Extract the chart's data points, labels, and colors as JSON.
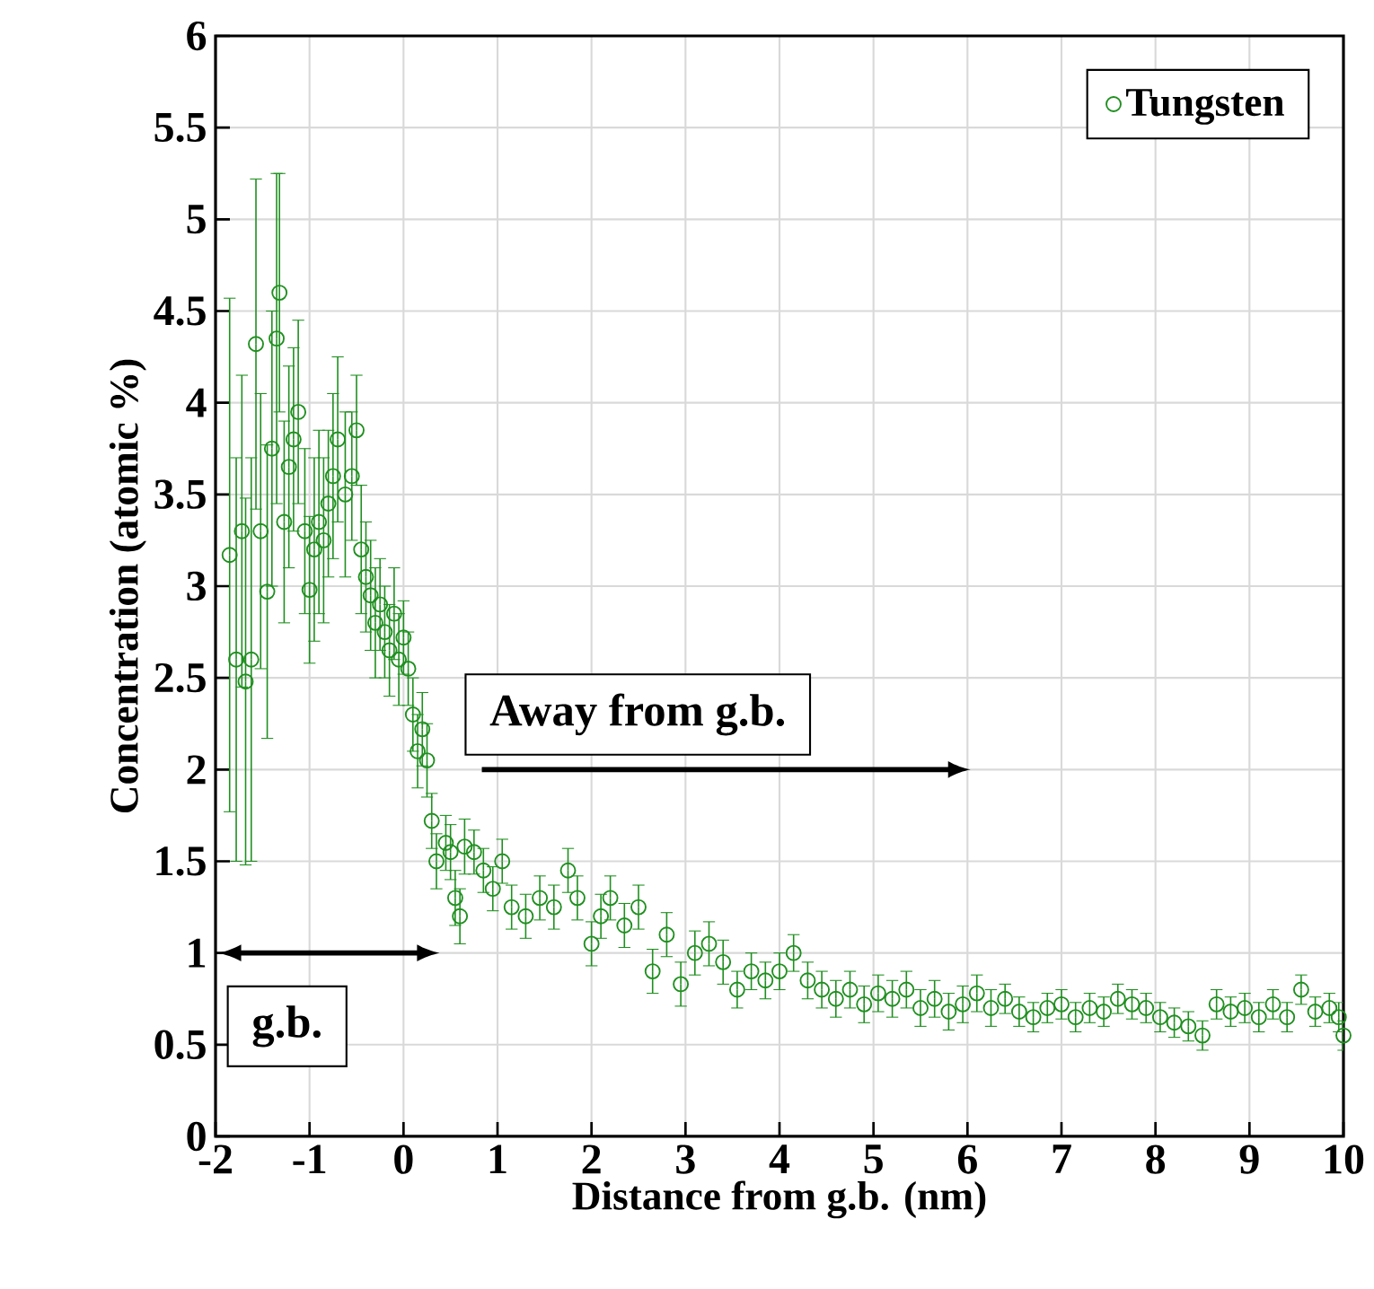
{
  "chart_data": {
    "type": "scatter",
    "xlabel": "Distance from g.b. (nm)",
    "ylabel": "Concentration (atomic %)",
    "xlim": [
      -2,
      10
    ],
    "xticks": [
      -2,
      -1,
      0,
      1,
      2,
      3,
      4,
      5,
      6,
      7,
      8,
      9,
      10
    ],
    "ylim": [
      0,
      6
    ],
    "yticks": [
      0,
      0.5,
      1,
      1.5,
      2,
      2.5,
      3,
      3.5,
      4,
      4.5,
      5,
      5.5,
      6
    ],
    "grid": true,
    "legend": "top right",
    "marker": "circle",
    "annotations": [
      "Away from g.b.",
      "g.b."
    ],
    "series": [
      {
        "name": "Tungsten",
        "color": "#1f8f1f",
        "x": [
          -1.85,
          -1.78,
          -1.72,
          -1.68,
          -1.62,
          -1.57,
          -1.52,
          -1.45,
          -1.4,
          -1.35,
          -1.32,
          -1.27,
          -1.22,
          -1.17,
          -1.12,
          -1.05,
          -1.0,
          -0.95,
          -0.9,
          -0.85,
          -0.8,
          -0.75,
          -0.7,
          -0.62,
          -0.55,
          -0.5,
          -0.45,
          -0.4,
          -0.35,
          -0.3,
          -0.25,
          -0.2,
          -0.15,
          -0.1,
          -0.05,
          0.0,
          0.05,
          0.1,
          0.15,
          0.2,
          0.25,
          0.3,
          0.35,
          0.45,
          0.5,
          0.55,
          0.6,
          0.65,
          0.75,
          0.85,
          0.95,
          1.05,
          1.15,
          1.3,
          1.45,
          1.6,
          1.75,
          1.85,
          2.0,
          2.1,
          2.2,
          2.35,
          2.5,
          2.65,
          2.8,
          2.95,
          3.1,
          3.25,
          3.4,
          3.55,
          3.7,
          3.85,
          4.0,
          4.15,
          4.3,
          4.45,
          4.6,
          4.75,
          4.9,
          5.05,
          5.2,
          5.35,
          5.5,
          5.65,
          5.8,
          5.95,
          6.1,
          6.25,
          6.4,
          6.55,
          6.7,
          6.85,
          7.0,
          7.15,
          7.3,
          7.45,
          7.6,
          7.75,
          7.9,
          8.05,
          8.2,
          8.35,
          8.5,
          8.65,
          8.8,
          8.95,
          9.1,
          9.25,
          9.4,
          9.55,
          9.7,
          9.85,
          9.95,
          10.0
        ],
        "values": [
          3.17,
          2.6,
          3.3,
          2.48,
          2.6,
          4.32,
          3.3,
          2.97,
          3.75,
          4.35,
          4.6,
          3.35,
          3.65,
          3.8,
          3.95,
          3.3,
          2.98,
          3.2,
          3.35,
          3.25,
          3.45,
          3.6,
          3.8,
          3.5,
          3.6,
          3.85,
          3.2,
          3.05,
          2.95,
          2.8,
          2.9,
          2.75,
          2.65,
          2.85,
          2.6,
          2.72,
          2.55,
          2.3,
          2.1,
          2.22,
          2.05,
          1.72,
          1.5,
          1.6,
          1.55,
          1.3,
          1.2,
          1.58,
          1.55,
          1.45,
          1.35,
          1.5,
          1.25,
          1.2,
          1.3,
          1.25,
          1.45,
          1.3,
          1.05,
          1.2,
          1.3,
          1.15,
          1.25,
          0.9,
          1.1,
          0.83,
          1.0,
          1.05,
          0.95,
          0.8,
          0.9,
          0.85,
          0.9,
          1.0,
          0.85,
          0.8,
          0.75,
          0.8,
          0.72,
          0.78,
          0.75,
          0.8,
          0.7,
          0.75,
          0.68,
          0.72,
          0.78,
          0.7,
          0.75,
          0.68,
          0.65,
          0.7,
          0.72,
          0.65,
          0.7,
          0.68,
          0.75,
          0.72,
          0.7,
          0.65,
          0.62,
          0.6,
          0.55,
          0.72,
          0.68,
          0.7,
          0.65,
          0.72,
          0.65,
          0.8,
          0.68,
          0.7,
          0.65,
          0.55
        ],
        "errors": [
          1.4,
          1.1,
          0.85,
          1.0,
          1.1,
          0.9,
          0.75,
          0.8,
          0.75,
          0.9,
          0.65,
          0.55,
          0.55,
          0.5,
          0.5,
          0.45,
          0.4,
          0.5,
          0.5,
          0.45,
          0.4,
          0.45,
          0.45,
          0.45,
          0.35,
          0.3,
          0.35,
          0.3,
          0.3,
          0.3,
          0.25,
          0.25,
          0.25,
          0.25,
          0.25,
          0.2,
          0.2,
          0.2,
          0.2,
          0.2,
          0.2,
          0.15,
          0.15,
          0.15,
          0.15,
          0.15,
          0.15,
          0.15,
          0.12,
          0.12,
          0.12,
          0.12,
          0.12,
          0.12,
          0.12,
          0.12,
          0.12,
          0.12,
          0.12,
          0.12,
          0.12,
          0.12,
          0.12,
          0.12,
          0.12,
          0.12,
          0.12,
          0.12,
          0.12,
          0.1,
          0.1,
          0.1,
          0.1,
          0.1,
          0.1,
          0.1,
          0.1,
          0.1,
          0.1,
          0.1,
          0.1,
          0.1,
          0.1,
          0.1,
          0.1,
          0.1,
          0.1,
          0.1,
          0.08,
          0.08,
          0.08,
          0.08,
          0.08,
          0.08,
          0.08,
          0.08,
          0.08,
          0.08,
          0.08,
          0.08,
          0.08,
          0.08,
          0.08,
          0.08,
          0.08,
          0.08,
          0.08,
          0.08,
          0.08,
          0.08,
          0.08,
          0.08,
          0.08,
          0.08
        ]
      }
    ]
  }
}
